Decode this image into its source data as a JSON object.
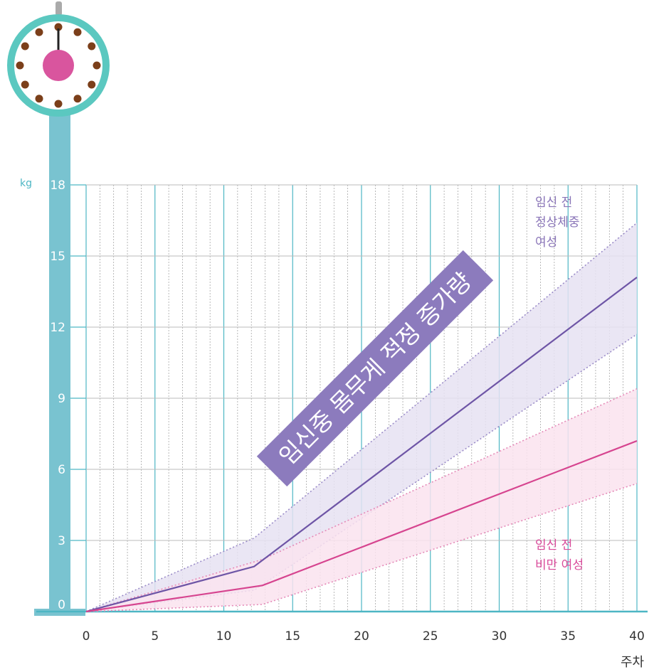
{
  "colors": {
    "pole": "#79c3d0",
    "clock_ring": "#5bc8c0",
    "clock_dot": "#7b3f1a",
    "clock_center": "#d9559e",
    "grid_major": "#4db6c4",
    "grid_minor": "#9a9a9a",
    "normal_line": "#6e55a6",
    "normal_band": "#e6e2f2",
    "normal_band_edge": "#9b8cc8",
    "obese_line": "#d6448f",
    "obese_band": "#fae3ef",
    "obese_band_edge": "#e58ab8",
    "banner_bg": "#8c7bbd"
  },
  "icon": "weighing-scale-clock-icon",
  "chart_data": {
    "type": "line",
    "title": "임신중 몸무게 적정 증가량",
    "xlabel": "주차",
    "ylabel": "kg",
    "xlim": [
      0,
      40
    ],
    "ylim": [
      0,
      18
    ],
    "x_ticks": [
      "0",
      "5",
      "10",
      "15",
      "20",
      "25",
      "30",
      "35",
      "40"
    ],
    "y_ticks": [
      "0",
      "3",
      "6",
      "9",
      "12",
      "15",
      "18"
    ],
    "grid": true,
    "series": [
      {
        "name": "임신 전 정상체중 여성",
        "label_lines": [
          "임신 전",
          "정상체중",
          "여성"
        ],
        "color": "#6e55a6",
        "x": [
          0,
          12.2,
          40
        ],
        "y": [
          0,
          1.9,
          14.1
        ],
        "band_upper": [
          0,
          3.1,
          16.4
        ],
        "band_lower": [
          0,
          0.9,
          11.7
        ]
      },
      {
        "name": "임신 전 비만 여성",
        "label_lines": [
          "임신 전",
          "비만 여성"
        ],
        "color": "#d6448f",
        "x": [
          0,
          12.8,
          40
        ],
        "y": [
          0,
          1.1,
          7.2
        ],
        "band_upper": [
          0,
          2.2,
          9.4
        ],
        "band_lower": [
          0,
          0.3,
          5.4
        ]
      }
    ]
  }
}
